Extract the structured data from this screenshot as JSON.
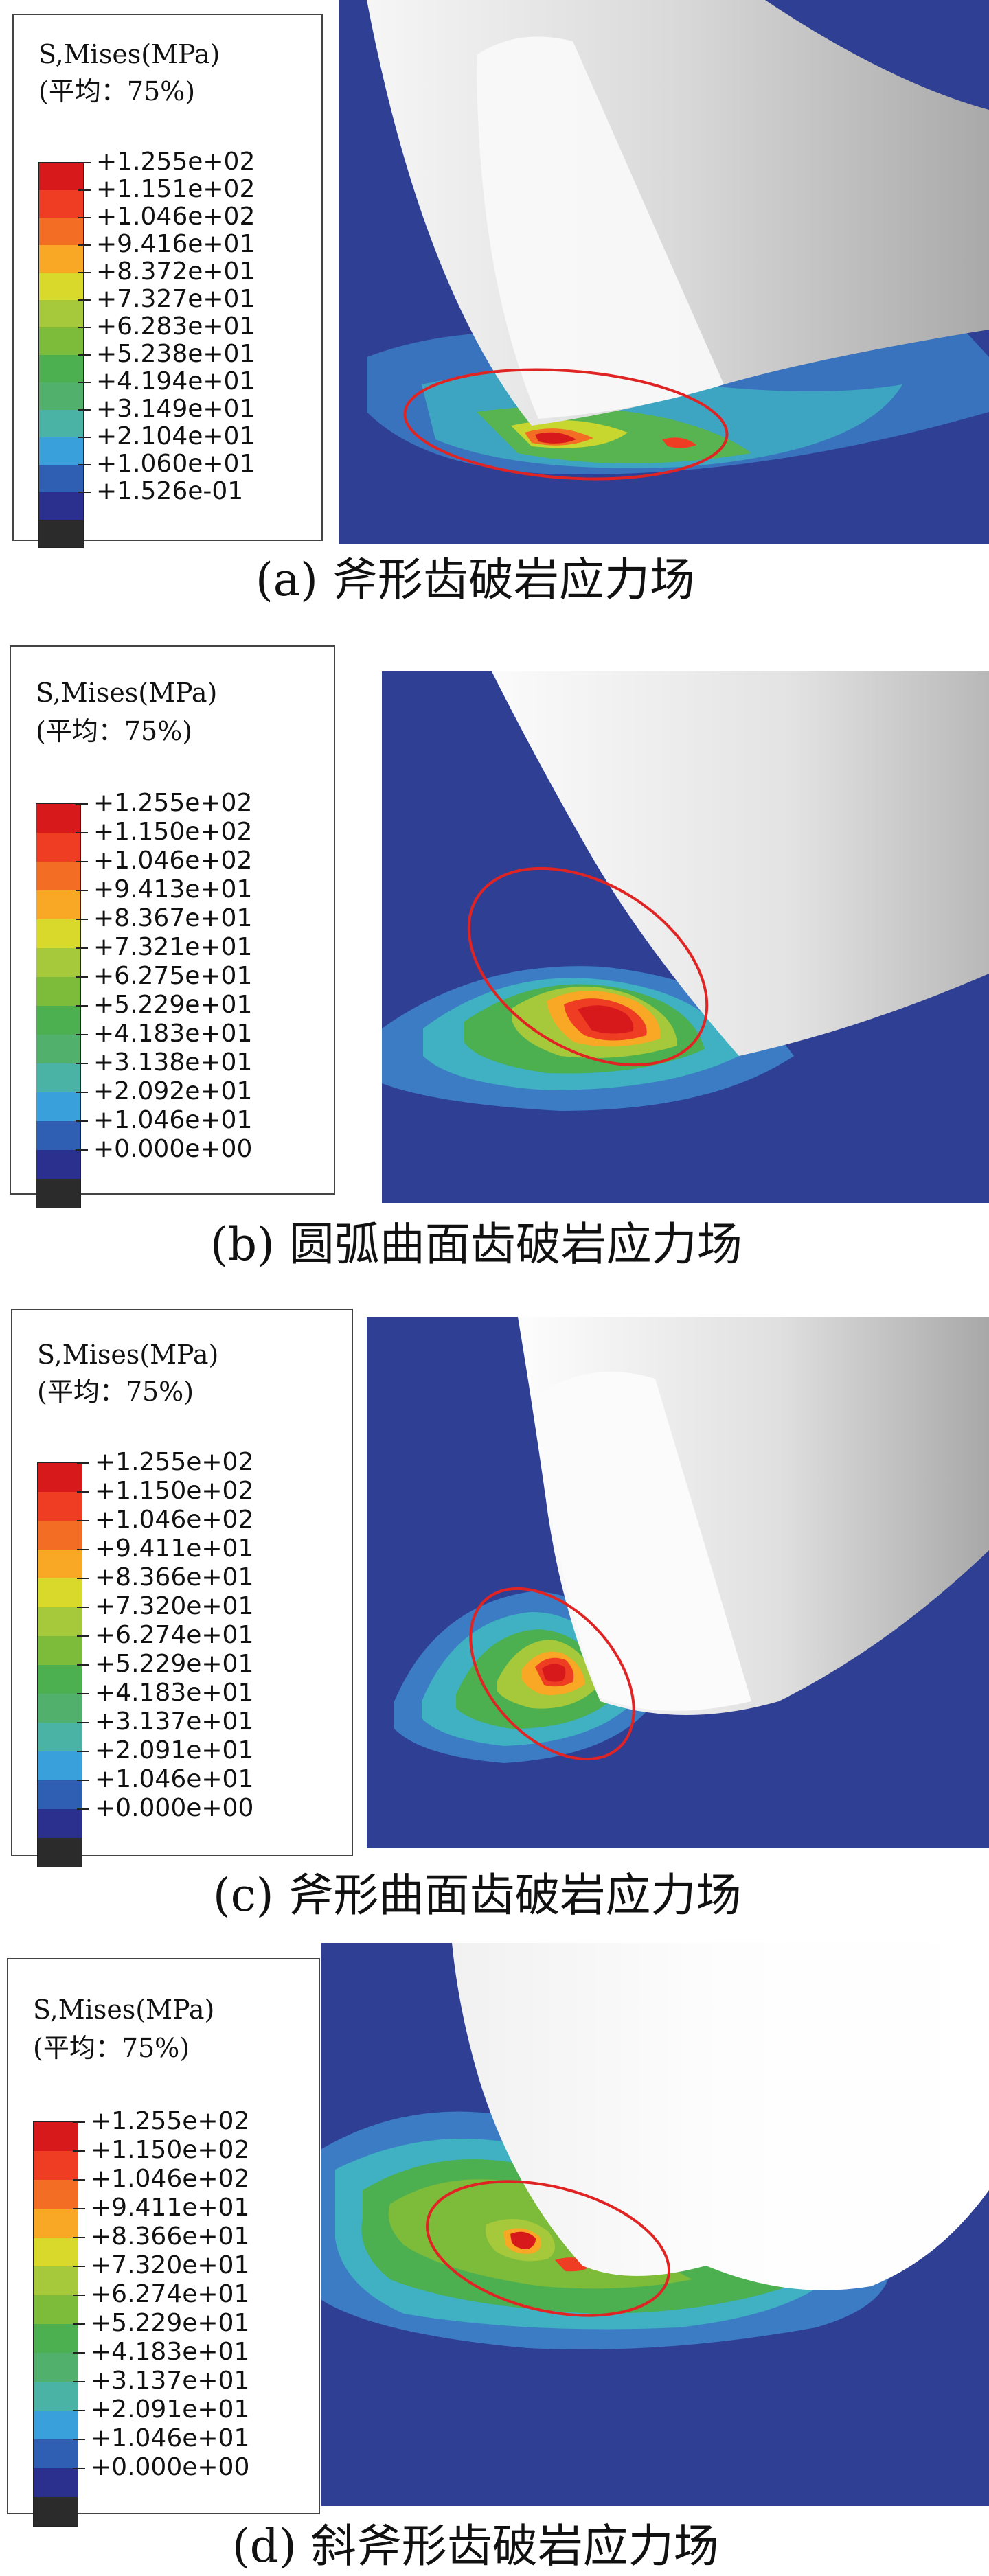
{
  "legend_colors": [
    "#d7191c",
    "#ee3d22",
    "#f46d24",
    "#f9a825",
    "#d9d92b",
    "#a5c93a",
    "#7dbb3a",
    "#4caf50",
    "#52b06d",
    "#4ab3a6",
    "#3aa0dc",
    "#2f5fb3",
    "#2b2f8e",
    "#2b2b2b"
  ],
  "panels": [
    {
      "title": "S,Mises(MPa)",
      "avg": "(平均：75%)",
      "values": [
        "+1.255e+02",
        "+1.151e+02",
        "+1.046e+02",
        "+9.416e+01",
        "+8.372e+01",
        "+7.327e+01",
        "+6.283e+01",
        "+5.238e+01",
        "+4.194e+01",
        "+3.149e+01",
        "+2.104e+01",
        "+1.060e+01",
        "+1.526e-01"
      ],
      "caption": "(a)  斧形齿破岩应力场"
    },
    {
      "title": "S,Mises(MPa)",
      "avg": "(平均：75%)",
      "values": [
        "+1.255e+02",
        "+1.150e+02",
        "+1.046e+02",
        "+9.413e+01",
        "+8.367e+01",
        "+7.321e+01",
        "+6.275e+01",
        "+5.229e+01",
        "+4.183e+01",
        "+3.138e+01",
        "+2.092e+01",
        "+1.046e+01",
        "+0.000e+00"
      ],
      "caption": "(b)  圆弧曲面齿破岩应力场"
    },
    {
      "title": "S,Mises(MPa)",
      "avg": "(平均：75%)",
      "values": [
        "+1.255e+02",
        "+1.150e+02",
        "+1.046e+02",
        "+9.411e+01",
        "+8.366e+01",
        "+7.320e+01",
        "+6.274e+01",
        "+5.229e+01",
        "+4.183e+01",
        "+3.137e+01",
        "+2.091e+01",
        "+1.046e+01",
        "+0.000e+00"
      ],
      "caption": "(c)  斧形曲面齿破岩应力场"
    },
    {
      "title": "S,Mises(MPa)",
      "avg": "(平均：75%)",
      "values": [
        "+1.255e+02",
        "+1.150e+02",
        "+1.046e+02",
        "+9.411e+01",
        "+8.366e+01",
        "+7.320e+01",
        "+6.274e+01",
        "+5.229e+01",
        "+4.183e+01",
        "+3.137e+01",
        "+2.091e+01",
        "+1.046e+01",
        "+0.000e+00"
      ],
      "caption": "(d)  斜斧形齿破岩应力场"
    }
  ]
}
